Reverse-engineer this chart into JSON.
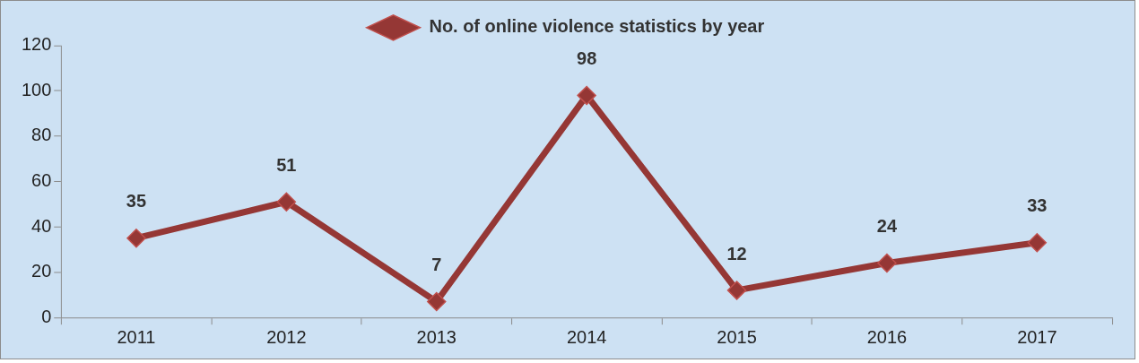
{
  "chart_data": {
    "type": "line",
    "categories": [
      "2011",
      "2012",
      "2013",
      "2014",
      "2015",
      "2016",
      "2017"
    ],
    "series": [
      {
        "name": "No. of online violence statistics by year",
        "color": "#953735",
        "values": [
          35,
          51,
          7,
          98,
          12,
          24,
          33
        ]
      }
    ],
    "ylim": [
      0,
      120
    ],
    "yticks": [
      0,
      20,
      40,
      60,
      80,
      100,
      120
    ],
    "grid": false,
    "legend": "top",
    "marker": "diamond",
    "line_style": "solid",
    "data_labels": true
  }
}
